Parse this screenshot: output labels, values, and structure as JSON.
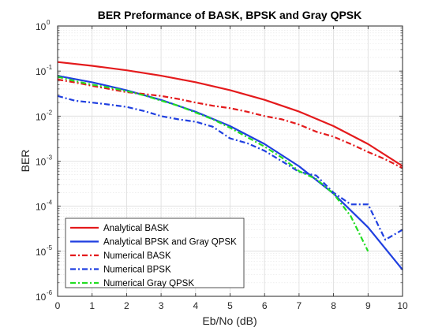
{
  "chart_data": {
    "type": "line",
    "title": "BER Preformance of BASK, BPSK and Gray QPSK",
    "xlabel": "Eb/No (dB)",
    "ylabel": "BER",
    "xlim": [
      0,
      10
    ],
    "ylim": [
      1e-06,
      1
    ],
    "yscale": "log",
    "grid": true,
    "legend_position": "bottom-left",
    "x_ticks": [
      "0",
      "1",
      "2",
      "3",
      "4",
      "5",
      "6",
      "7",
      "8",
      "9",
      "10"
    ],
    "y_ticks": [
      {
        "base": "10",
        "exp": "0"
      },
      {
        "base": "10",
        "exp": "-1"
      },
      {
        "base": "10",
        "exp": "-2"
      },
      {
        "base": "10",
        "exp": "-3"
      },
      {
        "base": "10",
        "exp": "-4"
      },
      {
        "base": "10",
        "exp": "-5"
      },
      {
        "base": "10",
        "exp": "-6"
      }
    ],
    "series": [
      {
        "name": "Analytical BASK",
        "color": "#e41a1c",
        "style": "solid",
        "x": [
          0,
          1,
          2,
          3,
          4,
          5,
          6,
          7,
          8,
          9,
          10
        ],
        "values": [
          0.1587,
          0.1309,
          0.104,
          0.0789,
          0.0565,
          0.0377,
          0.023,
          0.0126,
          0.006,
          0.0024,
          0.00078
        ]
      },
      {
        "name": "Analytical BPSK and Gray QPSK",
        "color": "#1f3fe0",
        "style": "solid",
        "x": [
          0,
          1,
          2,
          3,
          4,
          5,
          6,
          7,
          8,
          9,
          10
        ],
        "values": [
          0.0786,
          0.0563,
          0.0375,
          0.0229,
          0.0125,
          0.006,
          0.0024,
          0.00077,
          0.00019,
          3.4e-05,
          3.9e-06
        ]
      },
      {
        "name": "Numerical BASK",
        "color": "#e41a1c",
        "style": "dashdot",
        "x": [
          0,
          0.5,
          1,
          1.5,
          2,
          2.5,
          3,
          3.5,
          4,
          4.5,
          5,
          5.5,
          6,
          6.5,
          7,
          7.5,
          8,
          8.5,
          9,
          9.5,
          10
        ],
        "values": [
          0.065,
          0.056,
          0.047,
          0.04,
          0.034,
          0.031,
          0.028,
          0.024,
          0.02,
          0.017,
          0.015,
          0.0125,
          0.01,
          0.0085,
          0.0065,
          0.0045,
          0.0035,
          0.0024,
          0.0016,
          0.0011,
          0.0007
        ]
      },
      {
        "name": "Numerical BPSK",
        "color": "#1f3fe0",
        "style": "dashdot",
        "x": [
          0,
          0.5,
          1,
          1.5,
          2,
          2.5,
          3,
          3.5,
          4,
          4.5,
          5,
          5.5,
          6,
          6.5,
          7,
          7.5,
          8,
          8.5,
          9,
          9.5,
          10
        ],
        "values": [
          0.028,
          0.022,
          0.02,
          0.018,
          0.016,
          0.013,
          0.01,
          0.0085,
          0.0075,
          0.0058,
          0.0032,
          0.0025,
          0.0017,
          0.001,
          0.00058,
          0.00048,
          0.0002,
          0.00011,
          0.00011,
          1.8e-05,
          3e-05
        ]
      },
      {
        "name": "Numerical Gray QPSK",
        "color": "#22dd22",
        "style": "dashdot",
        "x": [
          0,
          0.5,
          1,
          1.5,
          2,
          2.5,
          3,
          3.5,
          4,
          4.5,
          5,
          5.5,
          6,
          6.5,
          7,
          7.5,
          8,
          8.5,
          9
        ],
        "values": [
          0.075,
          0.06,
          0.05,
          0.043,
          0.036,
          0.029,
          0.022,
          0.017,
          0.012,
          0.0085,
          0.0055,
          0.0034,
          0.0021,
          0.0012,
          0.0006,
          0.0004,
          0.00019,
          6e-05,
          1e-05
        ]
      }
    ]
  }
}
